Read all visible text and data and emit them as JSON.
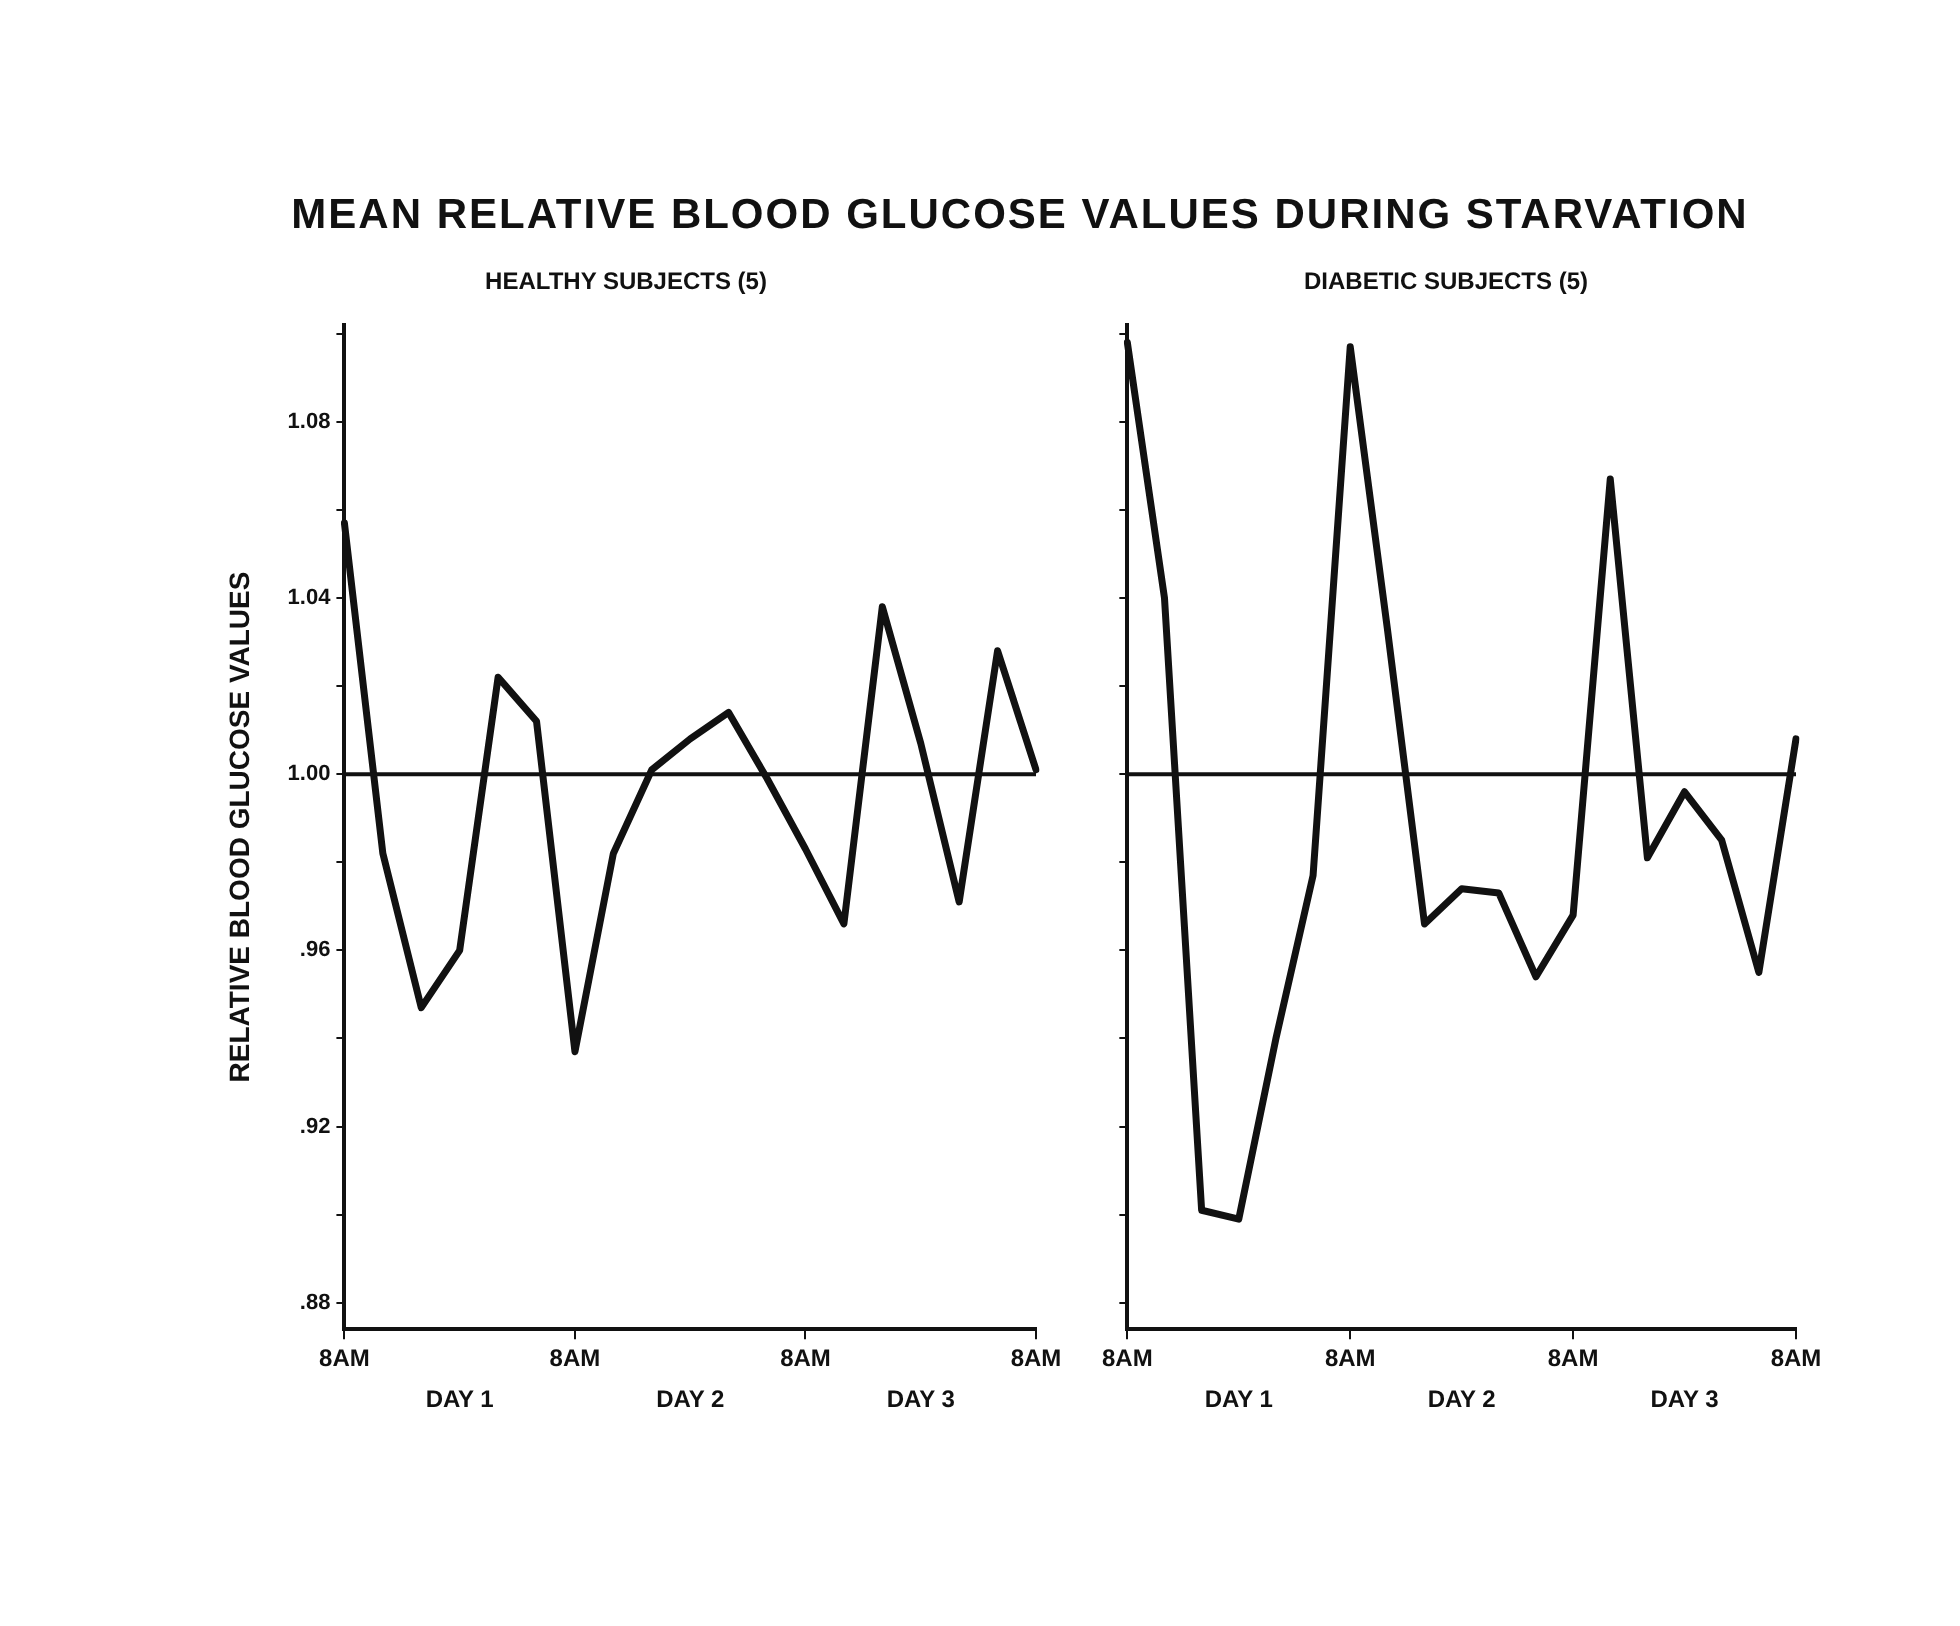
{
  "chart_data": [
    {
      "type": "line",
      "title": "MEAN RELATIVE BLOOD GLUCOSE VALUES DURING STARVATION",
      "subtitle": "HEALTHY SUBJECTS (5)",
      "ylabel": "RELATIVE BLOOD GLUCOSE VALUES",
      "categories": [
        "8AM",
        null,
        null,
        null,
        null,
        null,
        "8AM",
        null,
        null,
        null,
        null,
        null,
        "8AM",
        null,
        null,
        null,
        null,
        null,
        "8AM"
      ],
      "series": [
        {
          "color": "#111111",
          "values": [
            1.057,
            0.982,
            0.947,
            0.96,
            1.022,
            1.012,
            0.937,
            0.982,
            1.001,
            1.008,
            1.014,
            0.999,
            0.983,
            0.966,
            1.038,
            1.007,
            0.971,
            1.028,
            1.001
          ]
        }
      ],
      "annotations": [
        "DAY 1",
        "DAY 2",
        "DAY 3"
      ],
      "ylim": [
        0.874,
        1.102
      ],
      "yticks": [
        {
          "value": 0.88,
          "label": ".88"
        },
        {
          "value": 0.9,
          "label": null
        },
        {
          "value": 0.92,
          "label": ".92"
        },
        {
          "value": 0.94,
          "label": null
        },
        {
          "value": 0.96,
          "label": ".96"
        },
        {
          "value": 0.98,
          "label": null
        },
        {
          "value": 1.0,
          "label": "1.00"
        },
        {
          "value": 1.02,
          "label": null
        },
        {
          "value": 1.04,
          "label": "1.04"
        },
        {
          "value": 1.06,
          "label": null
        },
        {
          "value": 1.08,
          "label": "1.08"
        },
        {
          "value": 1.1,
          "label": null
        }
      ],
      "ref_lines": [
        {
          "axis": "y",
          "value": 1.0
        }
      ],
      "grid": false,
      "legend": false,
      "marker": "none",
      "line_style": "solid"
    },
    {
      "type": "line",
      "subtitle": "DIABETIC SUBJECTS (5)",
      "categories": [
        "8AM",
        null,
        null,
        null,
        null,
        null,
        "8AM",
        null,
        null,
        null,
        null,
        null,
        "8AM",
        null,
        null,
        null,
        null,
        null,
        "8AM"
      ],
      "series": [
        {
          "color": "#111111",
          "values": [
            1.098,
            1.04,
            0.901,
            0.899,
            0.94,
            0.977,
            1.097,
            1.033,
            0.966,
            0.974,
            0.973,
            0.954,
            0.968,
            1.067,
            0.981,
            0.996,
            0.985,
            0.955,
            1.008
          ]
        }
      ],
      "annotations": [
        "DAY 1",
        "DAY 2",
        "DAY 3"
      ],
      "ylim": [
        0.874,
        1.102
      ],
      "yticks": [
        0.88,
        0.9,
        0.92,
        0.94,
        0.96,
        0.98,
        1.0,
        1.02,
        1.04,
        1.06,
        1.08,
        1.1
      ],
      "ref_lines": [
        {
          "axis": "y",
          "value": 1.0
        }
      ],
      "tick_labels": "x",
      "grid": false,
      "legend": false,
      "marker": "none",
      "line_style": "solid"
    }
  ]
}
